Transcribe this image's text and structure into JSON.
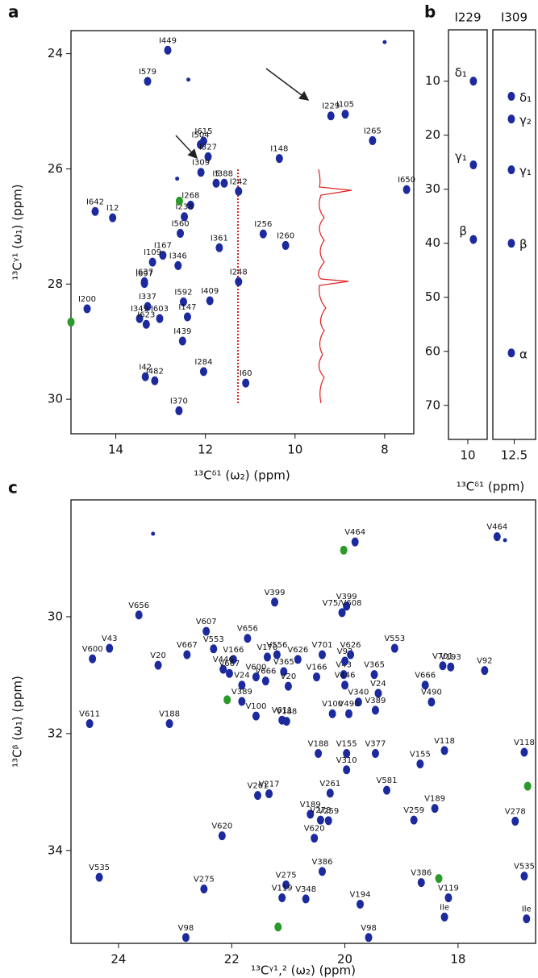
{
  "chart_data": [
    {
      "panel": "a",
      "type": "scatter",
      "x_label": "¹³Cᵟ¹ (ω₂) (ppm)",
      "y_label": "¹³Cᵞ¹ (ω₁) (ppm)",
      "xlim": [
        15.0,
        7.35
      ],
      "ylim": [
        23.6,
        30.6
      ],
      "xticks": [
        14,
        12,
        10,
        8
      ],
      "yticks": [
        24,
        26,
        28,
        30
      ],
      "series": [
        {
          "color": "#1c2a9e",
          "x": [
            12.84,
            8.0,
            13.29,
            12.38,
            9.2,
            8.88,
            8.27,
            12.11,
            12.04,
            11.94,
            10.35,
            12.1,
            12.63,
            11.76,
            11.58,
            11.26,
            7.51,
            12.33,
            12.47,
            14.46,
            14.07,
            12.56,
            10.71,
            10.21,
            11.69,
            12.95,
            13.18,
            12.61,
            13.36,
            13.36,
            11.26,
            12.49,
            11.9,
            14.64,
            13.29,
            13.47,
            13.02,
            12.4,
            13.32,
            12.51,
            12.04,
            13.34,
            13.13,
            11.1,
            12.59
          ],
          "y": [
            23.94,
            23.8,
            24.48,
            24.45,
            25.08,
            25.05,
            25.51,
            25.58,
            25.52,
            25.79,
            25.82,
            26.06,
            26.17,
            26.25,
            26.25,
            26.39,
            26.36,
            26.63,
            26.83,
            26.74,
            26.85,
            27.12,
            27.13,
            27.33,
            27.37,
            27.5,
            27.62,
            27.68,
            27.96,
            27.99,
            27.96,
            28.31,
            28.29,
            28.43,
            28.39,
            28.6,
            28.6,
            28.57,
            28.7,
            28.99,
            29.52,
            29.61,
            29.68,
            29.72,
            30.2
          ],
          "labels": [
            "I449",
            null,
            "I579",
            null,
            "I229",
            "I105",
            "I265",
            "I504",
            "I615",
            "I327",
            "I148",
            "I309",
            null,
            "I5",
            "I388",
            "I242",
            "I650",
            "I268",
            "I238",
            "I642",
            "I12",
            "I560",
            "I256",
            "I260",
            "I361",
            "I167",
            "I109",
            "I346",
            "I637",
            "I697",
            "I248",
            "I592",
            "I409",
            "I200",
            "I337",
            "I349",
            "I603",
            "I147",
            "I623",
            "I439",
            "I284",
            "I42",
            "I482",
            "I60",
            "I370"
          ]
        },
        {
          "color": "#2a9a2a",
          "x": [
            12.58,
            15.0
          ],
          "y": [
            26.56,
            28.66
          ]
        }
      ]
    },
    {
      "panel": "b",
      "type": "scatter",
      "x_label": "¹³Cᵟ¹ (ppm)",
      "ylim": [
        0.5,
        76.3
      ],
      "yticks": [
        10,
        20,
        30,
        40,
        50,
        60,
        70
      ],
      "subplots": [
        {
          "title": "I229",
          "color": "#1c2a9e",
          "xlim": [
            10.8,
            9.2
          ],
          "xticks": [
            10
          ],
          "x": [
            9.77,
            9.77,
            9.77
          ],
          "y": [
            10.0,
            25.5,
            39.3
          ],
          "labels": [
            "δ₁",
            "γ₁",
            "β"
          ]
        },
        {
          "title": "I309",
          "color": "#1c2a9e",
          "xlim": [
            13.4,
            11.6
          ],
          "xticks": [
            12.5
          ],
          "x": [
            12.62,
            12.62,
            12.62,
            12.62,
            12.62
          ],
          "y": [
            12.8,
            17.0,
            26.4,
            40.0,
            60.3
          ],
          "labels": [
            "δ₁",
            "γ₂",
            "γ₁",
            "β",
            "α"
          ]
        }
      ]
    },
    {
      "panel": "c",
      "type": "scatter",
      "x_label": "¹³Cᵞ¹,² (ω₂) (ppm)",
      "y_label": "¹³Cᵝ (ω₁) (ppm)",
      "xlim": [
        24.84,
        16.63
      ],
      "ylim": [
        28.0,
        35.59
      ],
      "xticks": [
        24,
        22,
        20,
        18
      ],
      "yticks": [
        30,
        32,
        34
      ],
      "series": [
        {
          "color": "#1c2a9e",
          "x": [
            23.39,
            19.82,
            17.31,
            17.17,
            23.64,
            24.16,
            24.46,
            23.3,
            24.51,
            23.1,
            22.79,
            22.45,
            22.32,
            21.72,
            21.97,
            22.15,
            21.82,
            21.82,
            21.57,
            21.11,
            21.03,
            21.4,
            21.57,
            22.04,
            21.24,
            19.97,
            20.05,
            21.37,
            21.2,
            20.83,
            20.4,
            21.08,
            20.5,
            21.0,
            20.02,
            20.0,
            19.41,
            20.0,
            19.9,
            19.48,
            19.12,
            18.27,
            18.13,
            17.53,
            18.58,
            18.47,
            19.46,
            19.76,
            19.93,
            20.22,
            19.97,
            19.46,
            20.47,
            19.97,
            18.24,
            18.67,
            16.83,
            21.54,
            21.34,
            20.26,
            19.26,
            20.61,
            20.43,
            20.29,
            20.54,
            18.78,
            18.41,
            16.99,
            22.17,
            24.34,
            22.49,
            21.04,
            20.4,
            21.11,
            20.69,
            19.73,
            18.65,
            16.83,
            18.17,
            18.24,
            16.79,
            22.81,
            19.58
          ],
          "y": [
            28.58,
            28.72,
            28.63,
            28.69,
            29.97,
            30.54,
            30.72,
            30.83,
            31.83,
            31.83,
            30.65,
            30.25,
            30.55,
            30.37,
            30.73,
            30.9,
            31.17,
            31.45,
            31.7,
            31.77,
            31.79,
            31.1,
            31.03,
            30.97,
            29.75,
            29.82,
            29.93,
            30.69,
            30.65,
            30.73,
            30.65,
            30.94,
            31.03,
            31.19,
            30.99,
            31.17,
            31.31,
            30.76,
            30.65,
            30.99,
            30.54,
            30.84,
            30.86,
            30.92,
            31.17,
            31.46,
            31.6,
            31.46,
            31.66,
            31.66,
            32.34,
            32.34,
            32.34,
            32.62,
            32.29,
            32.52,
            32.32,
            33.06,
            33.03,
            33.02,
            32.97,
            33.38,
            33.48,
            33.49,
            33.79,
            33.48,
            33.28,
            33.5,
            33.75,
            34.46,
            34.66,
            34.59,
            34.36,
            34.81,
            34.83,
            34.92,
            34.55,
            34.44,
            34.81,
            35.14,
            35.17,
            35.49,
            35.49
          ],
          "labels": [
            null,
            "V464",
            "V464",
            null,
            "V656",
            "V43",
            "V600",
            "V20",
            "V611",
            "V188",
            "V667",
            "V607",
            "V553",
            "V656",
            "V166",
            "V446",
            "V24",
            "V389",
            "V100",
            "V611",
            "V188",
            "V666",
            "V600",
            "V667",
            "V399",
            "V399",
            "V75/V608",
            "V170",
            "V556",
            "V626",
            "V701",
            "V365",
            "V166",
            "V20",
            "V43",
            "V446",
            "V24",
            "V92",
            "V626",
            "V365",
            "V553",
            "V701",
            "V193",
            "V92",
            "V666",
            "V490",
            "V389",
            "V340",
            "V490",
            "V100",
            "V155",
            "V377",
            "V188",
            "V310",
            "V118",
            "V155",
            "V118",
            "V261",
            "V217",
            "V261",
            "V581",
            "V189",
            "V278",
            "V259",
            "V620",
            "V259",
            "V189",
            "V278",
            "V620",
            "V535",
            "V275",
            "V275",
            "V386",
            "V119",
            "V348",
            "V194",
            "V386",
            "V535",
            "V119",
            "Ile",
            "Ile",
            "V98",
            "V98"
          ]
        },
        {
          "color": "#2a9a2a",
          "x": [
            20.02,
            22.08,
            16.77,
            21.18,
            18.34
          ],
          "y": [
            28.86,
            31.42,
            32.9,
            35.31,
            34.48
          ]
        }
      ]
    }
  ]
}
